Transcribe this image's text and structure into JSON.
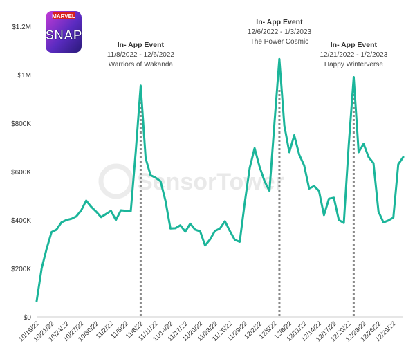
{
  "logo": {
    "line1": "MARVEL",
    "line2": "SNAP"
  },
  "watermark": "SensorTower",
  "chart_data": {
    "type": "line",
    "title": "",
    "xlabel": "",
    "ylabel": "",
    "ylim": [
      0,
      1200000
    ],
    "yticks": [
      {
        "value": 0,
        "label": "$0"
      },
      {
        "value": 200000,
        "label": "$200K"
      },
      {
        "value": 400000,
        "label": "$400K"
      },
      {
        "value": 600000,
        "label": "$600K"
      },
      {
        "value": 800000,
        "label": "$800K"
      },
      {
        "value": 1000000,
        "label": "$1M"
      },
      {
        "value": 1200000,
        "label": "$1.2M"
      }
    ],
    "xticks": [
      "10/18/22",
      "10/21/22",
      "10/24/22",
      "10/27/22",
      "10/30/22",
      "11/2/22",
      "11/5/22",
      "11/8/22",
      "11/11/22",
      "11/14/22",
      "11/17/22",
      "11/20/22",
      "11/23/22",
      "11/26/22",
      "11/29/22",
      "12/2/22",
      "12/5/22",
      "12/8/22",
      "12/11/22",
      "12/14/22",
      "12/17/22",
      "12/20/22",
      "12/23/22",
      "12/26/22",
      "12/29/22"
    ],
    "grid": false,
    "line_color": "#1bb59a",
    "series": [
      {
        "name": "",
        "x": [
          "10/18/22",
          "10/19/22",
          "10/20/22",
          "10/21/22",
          "10/22/22",
          "10/23/22",
          "10/24/22",
          "10/25/22",
          "10/26/22",
          "10/27/22",
          "10/28/22",
          "10/29/22",
          "10/30/22",
          "10/31/22",
          "11/1/22",
          "11/2/22",
          "11/3/22",
          "11/4/22",
          "11/5/22",
          "11/6/22",
          "11/7/22",
          "11/8/22",
          "11/9/22",
          "11/10/22",
          "11/11/22",
          "11/12/22",
          "11/13/22",
          "11/14/22",
          "11/15/22",
          "11/16/22",
          "11/17/22",
          "11/18/22",
          "11/19/22",
          "11/20/22",
          "11/21/22",
          "11/22/22",
          "11/23/22",
          "11/24/22",
          "11/25/22",
          "11/26/22",
          "11/27/22",
          "11/28/22",
          "11/29/22",
          "11/30/22",
          "12/1/22",
          "12/2/22",
          "12/3/22",
          "12/4/22",
          "12/5/22",
          "12/6/22",
          "12/7/22",
          "12/8/22",
          "12/9/22",
          "12/10/22",
          "12/11/22",
          "12/12/22",
          "12/13/22",
          "12/14/22",
          "12/15/22",
          "12/16/22",
          "12/17/22",
          "12/18/22",
          "12/19/22",
          "12/20/22",
          "12/21/22",
          "12/22/22",
          "12/23/22",
          "12/24/22",
          "12/25/22",
          "12/26/22",
          "12/27/22",
          "12/28/22",
          "12/29/22",
          "12/30/22",
          "12/31/22"
        ],
        "values": [
          65000,
          200000,
          280000,
          350000,
          360000,
          390000,
          400000,
          405000,
          415000,
          440000,
          480000,
          455000,
          435000,
          412000,
          425000,
          438000,
          400000,
          440000,
          438000,
          437000,
          680000,
          955000,
          655000,
          585000,
          575000,
          560000,
          480000,
          365000,
          366000,
          378000,
          352000,
          385000,
          360000,
          353000,
          295000,
          320000,
          355000,
          365000,
          395000,
          355000,
          318000,
          310000,
          470000,
          615000,
          697000,
          620000,
          560000,
          520000,
          800000,
          1065000,
          790000,
          680000,
          750000,
          670000,
          625000,
          530000,
          540000,
          520000,
          420000,
          488000,
          492000,
          400000,
          388000,
          710000,
          990000,
          680000,
          715000,
          660000,
          635000,
          435000,
          390000,
          398000,
          410000,
          630000,
          660000
        ]
      }
    ],
    "annotations": [
      {
        "at": "11/8/22",
        "title": "In- App Event",
        "dates": "11/8/2022 - 12/6/2022",
        "name": "Warriors of Wakanda"
      },
      {
        "at": "12/6/22",
        "title": "In- App Event",
        "dates": "12/6/2022 - 1/3/2023",
        "name": "The Power Cosmic"
      },
      {
        "at": "12/21/22",
        "title": "In- App Event",
        "dates": "12/21/2022 - 1/2/2023",
        "name": "Happy Winterverse"
      }
    ]
  }
}
